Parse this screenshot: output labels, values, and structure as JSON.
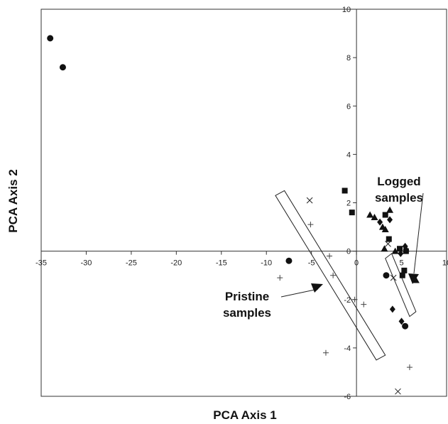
{
  "chart_data": {
    "type": "scatter",
    "xlabel": "PCA Axis 1",
    "ylabel": "PCA Axis 2",
    "xlim": [
      -35,
      10
    ],
    "ylim": [
      -6,
      10
    ],
    "xticks": [
      -35,
      -30,
      -25,
      -20,
      -15,
      -10,
      -5,
      0,
      5,
      10
    ],
    "yticks": [
      -6,
      -4,
      -2,
      0,
      2,
      4,
      6,
      8,
      10
    ],
    "xtick_labels": [
      "-35",
      "-30",
      "-25",
      "-20",
      "-15",
      "-10",
      "-5",
      "0",
      "5",
      "10"
    ],
    "ytick_labels": [
      "-6",
      "-4",
      "-2",
      "0",
      "2",
      "4",
      "6",
      "8",
      "10"
    ],
    "grid": false,
    "axes_cross_at_origin": true,
    "series": [
      {
        "marker": "circle",
        "points": [
          [
            -34.0,
            8.8
          ],
          [
            -32.6,
            7.6
          ],
          [
            -7.5,
            -0.4
          ],
          [
            3.3,
            -1.0
          ],
          [
            5.4,
            -3.1
          ]
        ]
      },
      {
        "marker": "square",
        "points": [
          [
            -1.3,
            2.5
          ],
          [
            -0.5,
            1.6
          ],
          [
            3.2,
            1.5
          ],
          [
            3.6,
            0.5
          ],
          [
            4.8,
            0.1
          ],
          [
            5.1,
            -1.0
          ],
          [
            5.3,
            -0.8
          ],
          [
            5.5,
            0.0
          ]
        ]
      },
      {
        "marker": "triangle",
        "points": [
          [
            1.5,
            1.5
          ],
          [
            2.0,
            1.4
          ],
          [
            2.9,
            1.0
          ],
          [
            3.7,
            1.7
          ],
          [
            3.2,
            0.9
          ],
          [
            3.1,
            0.1
          ],
          [
            4.3,
            0.0
          ],
          [
            5.5,
            0.1
          ],
          [
            6.6,
            -1.2
          ]
        ]
      },
      {
        "marker": "diamond",
        "points": [
          [
            2.6,
            1.2
          ],
          [
            3.7,
            1.3
          ],
          [
            4.9,
            -0.1
          ],
          [
            5.0,
            -2.9
          ],
          [
            4.0,
            -2.4
          ],
          [
            5.4,
            0.2
          ]
        ]
      },
      {
        "marker": "cross-x",
        "points": [
          [
            -5.2,
            2.1
          ],
          [
            3.5,
            0.3
          ],
          [
            4.1,
            -1.1
          ],
          [
            4.6,
            -5.8
          ]
        ]
      },
      {
        "marker": "plus",
        "points": [
          [
            -5.1,
            1.1
          ],
          [
            -8.5,
            -1.1
          ],
          [
            -3.0,
            -0.2
          ],
          [
            -2.6,
            -1.0
          ],
          [
            -0.2,
            -2.0
          ],
          [
            0.8,
            -2.2
          ],
          [
            -3.4,
            -4.2
          ],
          [
            5.9,
            -4.8
          ]
        ]
      }
    ],
    "annotations": [
      {
        "text_lines": [
          "Logged",
          "samples"
        ]
      },
      {
        "text_lines": [
          "Pristine",
          "samples"
        ]
      }
    ],
    "highlight_boxes": 2
  }
}
